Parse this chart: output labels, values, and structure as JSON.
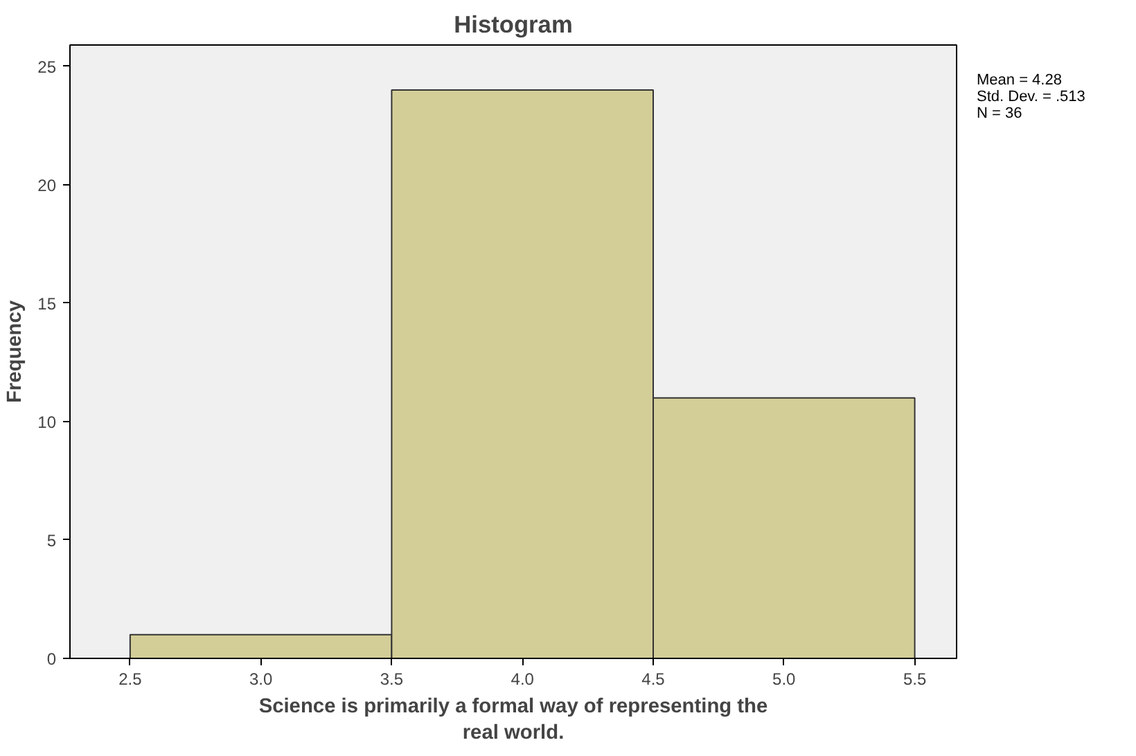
{
  "chart_data": {
    "type": "histogram",
    "title": "Histogram",
    "xlabel": "Science is primarily a formal way of representing the\nreal world.",
    "ylabel": "Frequency",
    "bins": [
      2.5,
      3.5,
      4.5,
      5.5
    ],
    "values": [
      1,
      24,
      11
    ],
    "color": "#d3ce98",
    "xlim": [
      2.27,
      5.66
    ],
    "xticks": [
      2.5,
      {
        "value": 3,
        "label": "3.0"
      },
      3.5,
      {
        "value": 4,
        "label": "4.0"
      },
      4.5,
      {
        "value": 5,
        "label": "5.0"
      },
      5.5
    ],
    "ylim": [
      0,
      25.9
    ],
    "yticks": [
      0,
      5,
      10,
      15,
      20,
      25
    ],
    "grid": false,
    "annotations": [
      "Mean = 4.28\nStd. Dev. = .513\nN = 36"
    ]
  }
}
